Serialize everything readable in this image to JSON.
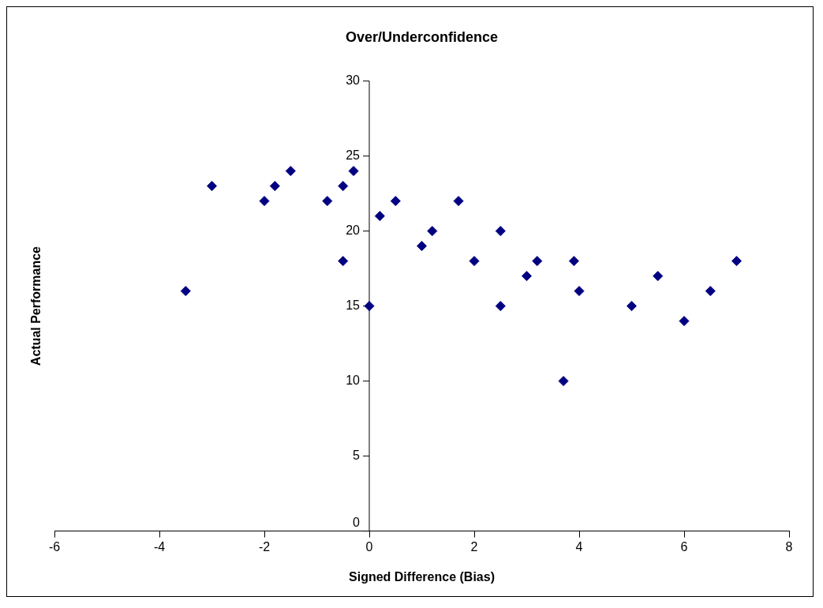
{
  "chart_data": {
    "type": "scatter",
    "title": "Over/Underconfidence",
    "xlabel": "Signed Difference (Bias)",
    "ylabel": "Actual Performance",
    "x": [
      -3.5,
      -3,
      -2,
      -1.8,
      -1.5,
      -0.8,
      -0.5,
      -0.3,
      -0.5,
      0,
      0.2,
      0.5,
      1,
      1.2,
      1.7,
      2,
      2.5,
      2.5,
      3,
      3.2,
      3.7,
      3.9,
      4,
      5,
      5.5,
      6,
      6.5,
      7
    ],
    "series": [
      {
        "color": "#000080",
        "values": [
          16,
          23,
          22,
          23,
          24,
          22,
          23,
          24,
          18,
          15,
          21,
          22,
          19,
          20,
          22,
          18,
          20,
          15,
          17,
          18,
          10,
          18,
          16,
          15,
          17,
          14,
          16,
          18
        ]
      }
    ],
    "xlim": [
      -6,
      8
    ],
    "xticks": [
      -6,
      -4,
      -2,
      0,
      2,
      4,
      6,
      8
    ],
    "ylim": [
      0,
      30
    ],
    "yticks": [
      0,
      5,
      10,
      15,
      20,
      25,
      30
    ],
    "grid": false,
    "legend": false,
    "marker": "diamond"
  }
}
